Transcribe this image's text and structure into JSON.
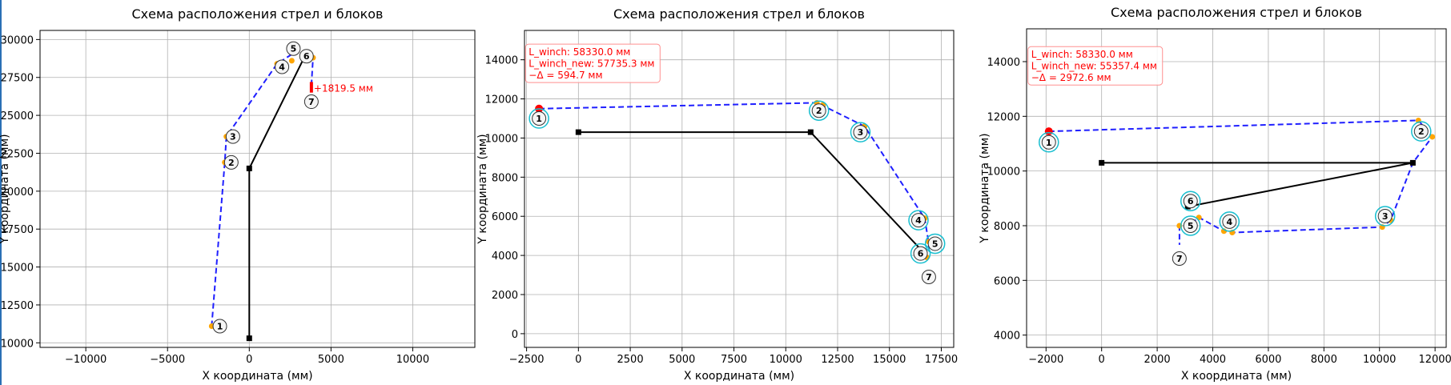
{
  "chart_data": [
    {
      "type": "line",
      "title": "Схема расположения стрел и блоков",
      "xlabel": "X координата (мм)",
      "ylabel": "Y координата (мм)",
      "xlim": [
        -12800,
        13800
      ],
      "ylim": [
        9700,
        30600
      ],
      "xticks": [
        -10000,
        -5000,
        0,
        5000,
        10000
      ],
      "xtick_labels": [
        "−10000",
        "−5000",
        "0",
        "5000",
        "10000"
      ],
      "yticks": [
        10000,
        12500,
        15000,
        17500,
        20000,
        22500,
        25000,
        27500,
        30000
      ],
      "ytick_labels": [
        "10000",
        "12500",
        "15000",
        "17500",
        "20000",
        "22500",
        "25000",
        "27500",
        "30000"
      ],
      "grid": true,
      "boom": [
        [
          0,
          10300
        ],
        [
          0,
          21500
        ],
        [
          3400,
          28900
        ]
      ],
      "rope": [
        [
          -2300,
          11100
        ],
        [
          -1500,
          21900
        ],
        [
          -1400,
          23600
        ],
        [
          1700,
          28400
        ],
        [
          3000,
          29300
        ],
        [
          3400,
          28900
        ],
        [
          3900,
          28800
        ],
        [
          3800,
          27000
        ]
      ],
      "winch_point": null,
      "orange_dots": [
        [
          -2300,
          11100
        ],
        [
          -1500,
          21900
        ],
        [
          -1400,
          23600
        ],
        [
          1700,
          28400
        ],
        [
          2600,
          28600
        ],
        [
          3600,
          29000
        ],
        [
          3900,
          28800
        ]
      ],
      "blocks": [
        {
          "label": "1",
          "x": -1800,
          "y": 11100,
          "ring": false
        },
        {
          "label": "2",
          "x": -1100,
          "y": 21900,
          "ring": false
        },
        {
          "label": "3",
          "x": -1000,
          "y": 23600,
          "ring": false
        },
        {
          "label": "4",
          "x": 2000,
          "y": 28200,
          "ring": false
        },
        {
          "label": "5",
          "x": 2700,
          "y": 29400,
          "ring": false
        },
        {
          "label": "6",
          "x": 3500,
          "y": 28900,
          "ring": false
        },
        {
          "label": "7",
          "x": 3800,
          "y": 25900,
          "ring": false
        }
      ],
      "annotation_bar": {
        "x": 3800,
        "y1": 26500,
        "y2": 27200,
        "color": "#ff0000"
      },
      "annotation_text": {
        "text": "+1819.5 мм",
        "x": 3950,
        "y": 26550
      },
      "info_box": null
    },
    {
      "type": "line",
      "title": "Схема расположения стрел и блоков",
      "xlabel": "X координата (мм)",
      "ylabel": "Y координата (мм)",
      "xlim": [
        -2600,
        18100
      ],
      "ylim": [
        -700,
        15500
      ],
      "xticks": [
        -2500,
        0,
        2500,
        5000,
        7500,
        10000,
        12500,
        15000,
        17500
      ],
      "xtick_labels": [
        "−2500",
        "0",
        "2500",
        "5000",
        "7500",
        "10000",
        "12500",
        "15000",
        "17500"
      ],
      "yticks": [
        0,
        2000,
        4000,
        6000,
        8000,
        10000,
        12000,
        14000
      ],
      "ytick_labels": [
        "0",
        "2000",
        "4000",
        "6000",
        "8000",
        "10000",
        "12000",
        "14000"
      ],
      "grid": true,
      "boom": [
        [
          0,
          10300
        ],
        [
          11200,
          10300
        ],
        [
          16600,
          4200
        ]
      ],
      "rope": [
        [
          -1900,
          11500
        ],
        [
          11500,
          11800
        ],
        [
          11700,
          11700
        ],
        [
          13800,
          10600
        ],
        [
          16700,
          5900
        ],
        [
          16900,
          4600
        ],
        [
          16900,
          4300
        ],
        [
          16600,
          4000
        ],
        [
          16800,
          3900
        ]
      ],
      "winch_point": [
        -1900,
        11500
      ],
      "orange_dots": [
        [
          11500,
          11800
        ],
        [
          11800,
          11700
        ],
        [
          13800,
          10600
        ],
        [
          16700,
          5900
        ],
        [
          16900,
          4700
        ],
        [
          16600,
          4100
        ],
        [
          16800,
          3900
        ]
      ],
      "blocks": [
        {
          "label": "1",
          "x": -1900,
          "y": 11000,
          "ring": true
        },
        {
          "label": "2",
          "x": 11600,
          "y": 11400,
          "ring": true
        },
        {
          "label": "3",
          "x": 13600,
          "y": 10300,
          "ring": true
        },
        {
          "label": "4",
          "x": 16400,
          "y": 5800,
          "ring": true
        },
        {
          "label": "5",
          "x": 17200,
          "y": 4600,
          "ring": true
        },
        {
          "label": "6",
          "x": 16500,
          "y": 4100,
          "ring": true
        },
        {
          "label": "7",
          "x": 16900,
          "y": 2900,
          "ring": false
        }
      ],
      "annotation_bar": null,
      "annotation_text": null,
      "info_box": {
        "lines": [
          "L_winch: 58330.0 мм",
          "L_winch_new: 57735.3 мм",
          "−Δ = 594.7 мм"
        ],
        "x": -2550,
        "y": 14800
      }
    },
    {
      "type": "line",
      "title": "Схема расположения стрел и блоков",
      "xlabel": "X координата (мм)",
      "ylabel": "Y координата (мм)",
      "xlim": [
        -2700,
        12400
      ],
      "ylim": [
        3550,
        15200
      ],
      "xticks": [
        -2000,
        0,
        2000,
        4000,
        6000,
        8000,
        10000,
        12000
      ],
      "xtick_labels": [
        "−2000",
        "0",
        "2000",
        "4000",
        "6000",
        "8000",
        "10000",
        "12000"
      ],
      "yticks": [
        4000,
        6000,
        8000,
        10000,
        12000,
        14000
      ],
      "ytick_labels": [
        "4000",
        "6000",
        "8000",
        "10000",
        "12000",
        "14000"
      ],
      "grid": true,
      "boom": [
        [
          0,
          10300
        ],
        [
          11200,
          10300
        ],
        [
          3100,
          8700
        ]
      ],
      "rope": [
        [
          -1900,
          11450
        ],
        [
          11400,
          11850
        ],
        [
          11900,
          11250
        ],
        [
          11200,
          10300
        ],
        [
          10400,
          8200
        ],
        [
          10100,
          7950
        ],
        [
          4700,
          7750
        ],
        [
          4400,
          7800
        ],
        [
          3500,
          8300
        ],
        [
          3100,
          8000
        ],
        [
          2800,
          8000
        ],
        [
          2800,
          7300
        ]
      ],
      "winch_point": [
        -1900,
        11450
      ],
      "orange_dots": [
        [
          11400,
          11850
        ],
        [
          11900,
          11250
        ],
        [
          10400,
          8200
        ],
        [
          10100,
          7950
        ],
        [
          4700,
          7750
        ],
        [
          4400,
          7800
        ],
        [
          3500,
          8300
        ],
        [
          2800,
          8000
        ]
      ],
      "blocks": [
        {
          "label": "1",
          "x": -1900,
          "y": 11050,
          "ring": true
        },
        {
          "label": "2",
          "x": 11500,
          "y": 11450,
          "ring": true
        },
        {
          "label": "3",
          "x": 10200,
          "y": 8350,
          "ring": true
        },
        {
          "label": "4",
          "x": 4600,
          "y": 8150,
          "ring": true
        },
        {
          "label": "5",
          "x": 3200,
          "y": 8000,
          "ring": true
        },
        {
          "label": "6",
          "x": 3200,
          "y": 8900,
          "ring": true
        },
        {
          "label": "7",
          "x": 2800,
          "y": 6800,
          "ring": false
        }
      ],
      "annotation_bar": null,
      "annotation_text": null,
      "info_box": {
        "lines": [
          "L_winch: 58330.0 мм",
          "L_winch_new: 55357.4 мм",
          "−Δ = 2972.6 мм"
        ],
        "x": -2650,
        "y": 14550
      }
    }
  ]
}
